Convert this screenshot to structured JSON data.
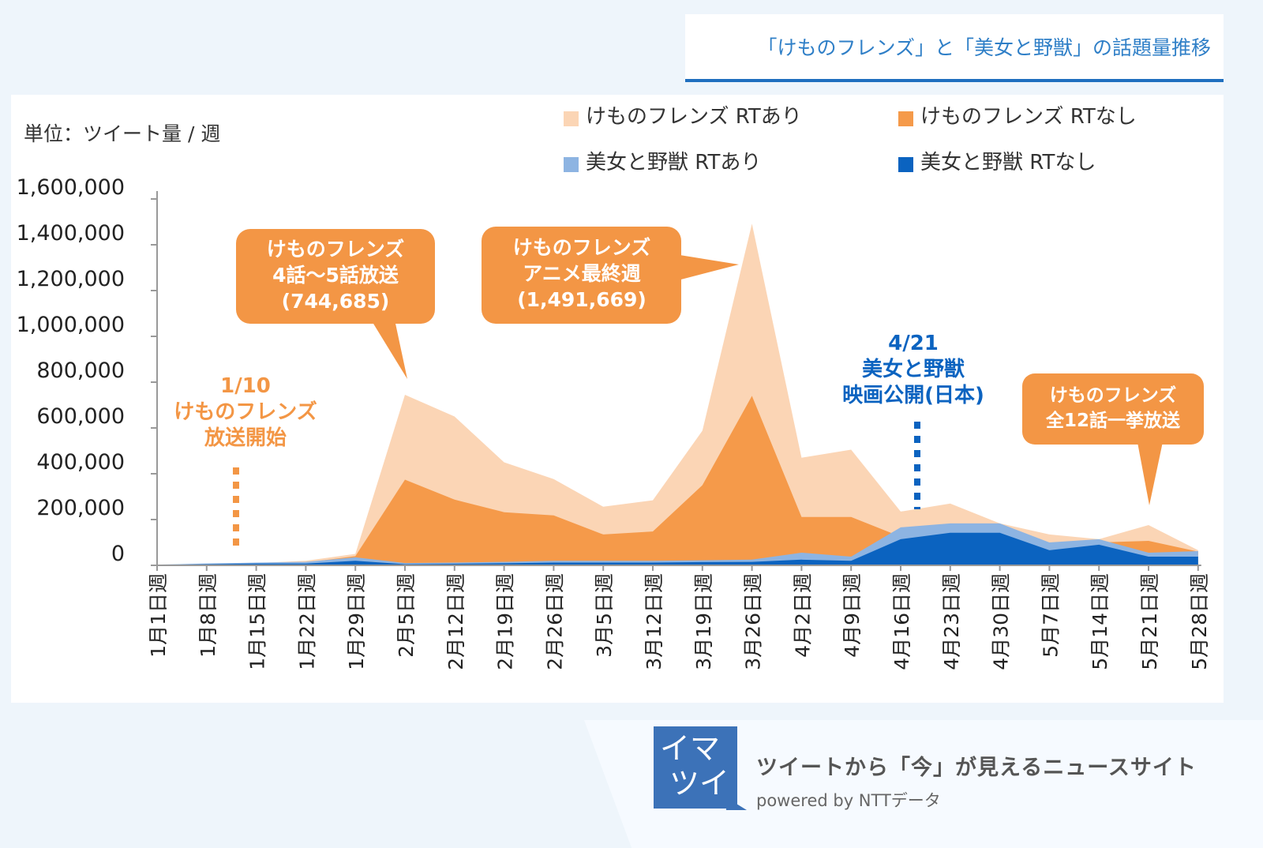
{
  "title": "「けものフレンズ」と「美女と野獣」の話題量推移",
  "chart_data": {
    "type": "area",
    "title": "「けものフレンズ」と「美女と野獣」の話題量推移",
    "unit_label": "単位：ツイート量 / 週",
    "ylim": [
      0,
      1600000
    ],
    "yticks": [
      "0",
      "200,000",
      "400,000",
      "600,000",
      "800,000",
      "1,000,000",
      "1,200,000",
      "1,400,000",
      "1,600,000"
    ],
    "ytick_values": [
      0,
      200000,
      400000,
      600000,
      800000,
      1000000,
      1200000,
      1400000,
      1600000
    ],
    "grid": false,
    "legend_placement": "top-right",
    "categories": [
      "1月1日週",
      "1月8日週",
      "1月15日週",
      "1月22日週",
      "1月29日週",
      "2月5日週",
      "2月12日週",
      "2月19日週",
      "2月26日週",
      "3月5日週",
      "3月12日週",
      "3月19日週",
      "3月26日週",
      "4月2日週",
      "4月9日週",
      "4月16日週",
      "4月23日週",
      "4月30日週",
      "5月7日週",
      "5月14日週",
      "5月21日週",
      "5月28日週"
    ],
    "series": [
      {
        "name": "けものフレンズ RTあり",
        "color": "#fbd5b5",
        "values": [
          1000,
          5000,
          10000,
          20000,
          50000,
          744685,
          650000,
          450000,
          377000,
          256000,
          284000,
          588000,
          1491669,
          470000,
          505000,
          235000,
          270000,
          183000,
          135000,
          114000,
          176000,
          66000
        ]
      },
      {
        "name": "けものフレンズ RTなし",
        "color": "#f59a4a",
        "values": [
          500,
          3000,
          6000,
          12000,
          40000,
          374000,
          287000,
          232000,
          218000,
          135000,
          148000,
          350000,
          740000,
          211000,
          211000,
          125000,
          130000,
          150000,
          90000,
          100000,
          107000,
          60000
        ]
      },
      {
        "name": "美女と野獣 RTあり",
        "color": "#8db4e2",
        "values": [
          3000,
          8000,
          12000,
          15000,
          35000,
          10000,
          12000,
          15000,
          20000,
          20000,
          20000,
          22000,
          25000,
          55000,
          38000,
          166000,
          183000,
          183000,
          100000,
          114000,
          55000,
          62000
        ]
      },
      {
        "name": "美女と野獣 RTなし",
        "color": "#0b63c0",
        "values": [
          2000,
          5000,
          8000,
          8000,
          20000,
          5000,
          7000,
          9000,
          12000,
          12000,
          12000,
          14000,
          15000,
          25000,
          20000,
          114000,
          142000,
          142000,
          66000,
          90000,
          38000,
          38000
        ]
      }
    ],
    "annotations": [
      {
        "lines": [
          "1/10",
          "けものフレンズ",
          "放送開始"
        ],
        "color": "#f39645",
        "category": "1月8日週"
      },
      {
        "lines": [
          "けものフレンズ",
          "4話～5話放送",
          "(744,685)"
        ],
        "color": "#f39645",
        "category": "2月5日週",
        "callout": true
      },
      {
        "lines": [
          "けものフレンズ",
          "アニメ最終週",
          "(1,491,669)"
        ],
        "color": "#f39645",
        "category": "3月26日週",
        "callout": true
      },
      {
        "lines": [
          "4/21",
          "美女と野獣",
          "映画公開(日本)"
        ],
        "color": "#0b63c0",
        "category": "4月16日週"
      },
      {
        "lines": [
          "けものフレンズ",
          "全12話一挙放送"
        ],
        "color": "#f39645",
        "category": "5月21日週",
        "callout": true
      }
    ]
  },
  "footer": {
    "logo_lines": [
      "イマ",
      "ツイ"
    ],
    "tagline": "ツイートから「今」が見えるニュースサイト",
    "powered": "powered by  NTTデータ"
  }
}
